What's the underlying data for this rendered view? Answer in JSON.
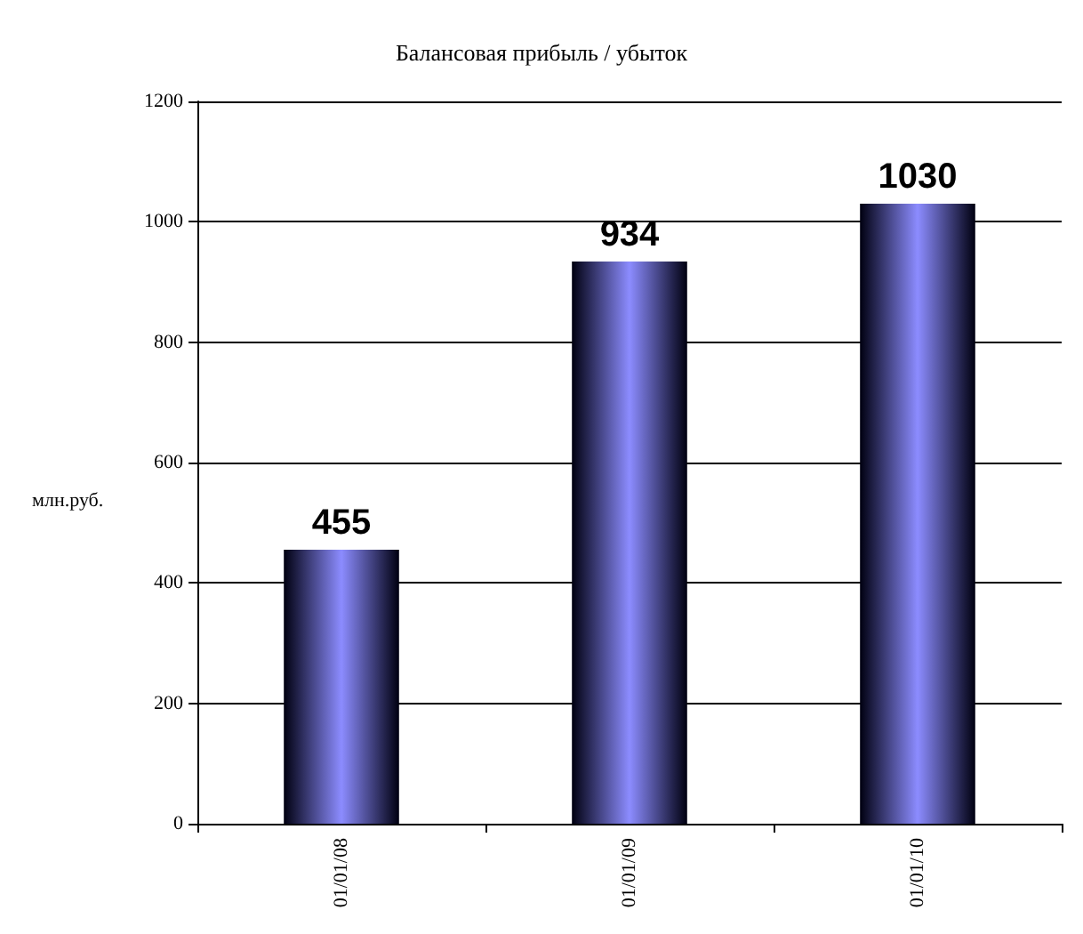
{
  "chart_data": {
    "type": "bar",
    "title": "Балансовая прибыль / убыток",
    "ylabel": "млн.руб.",
    "categories": [
      "01/01/08",
      "01/01/09",
      "01/01/10"
    ],
    "values": [
      455,
      934,
      1030
    ],
    "color": "#8c8cff",
    "ylim": [
      0,
      1200
    ],
    "yticks": [
      0,
      200,
      400,
      600,
      800,
      1000,
      1200
    ],
    "grid": "y",
    "data_labels": true
  }
}
